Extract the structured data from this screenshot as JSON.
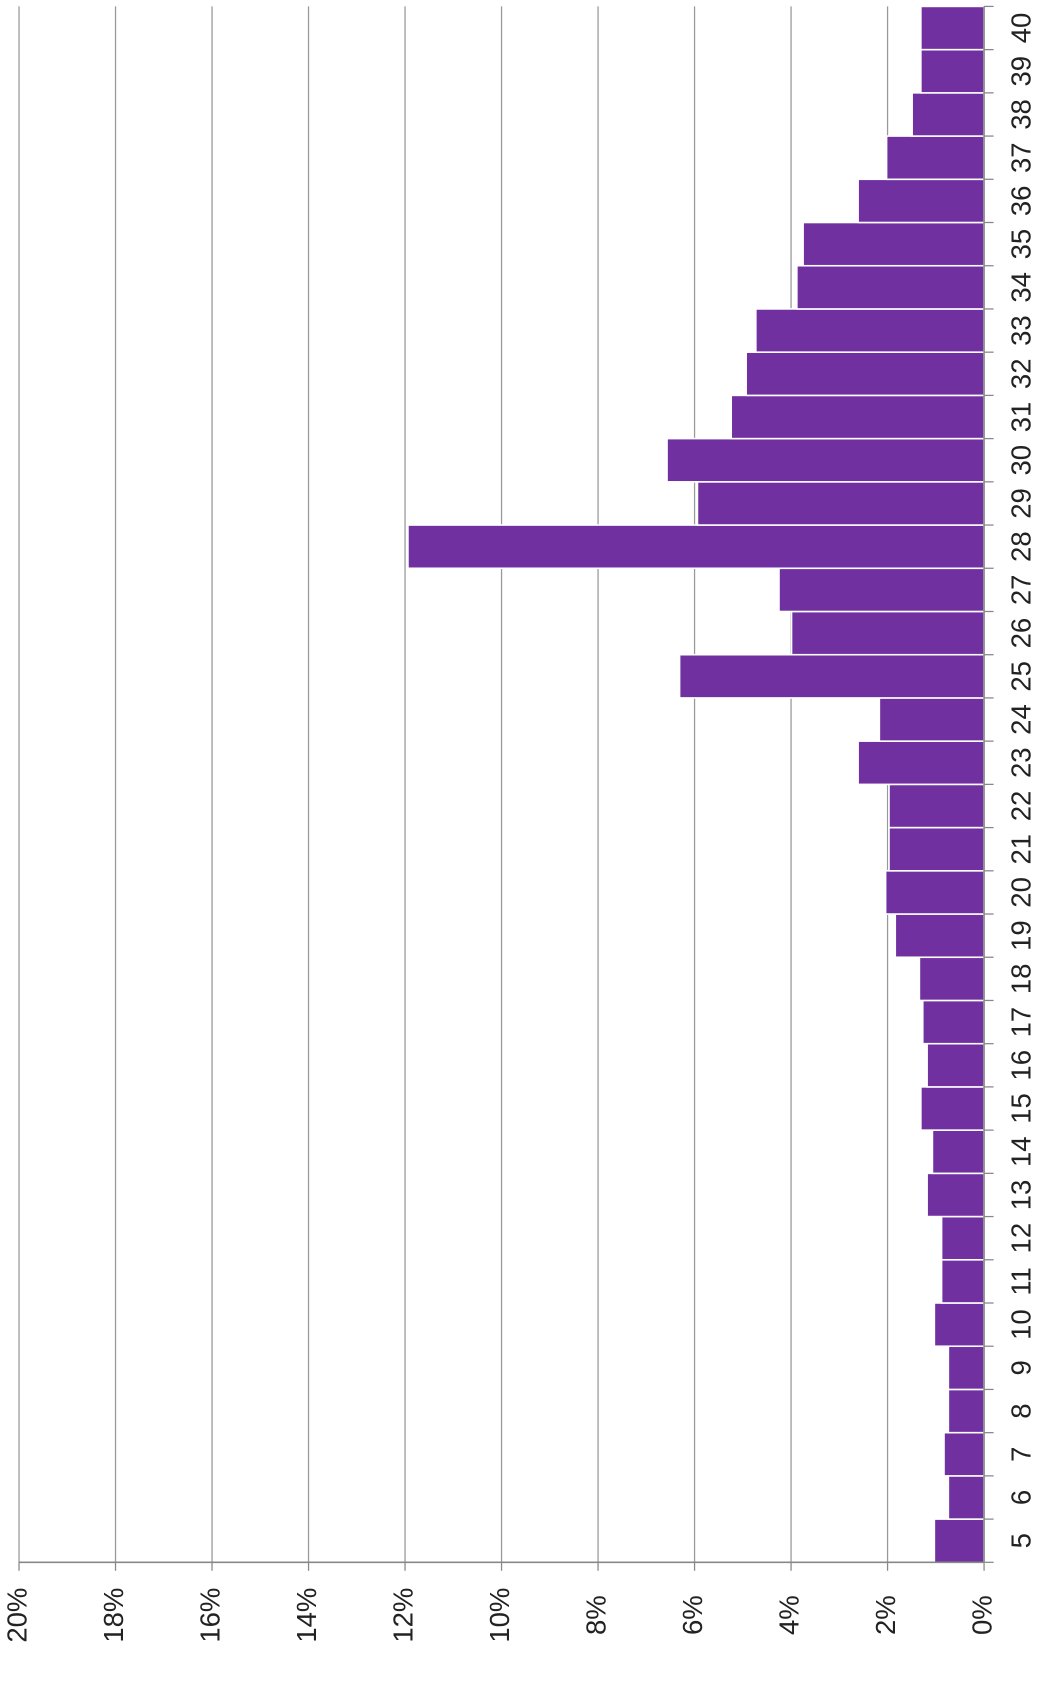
{
  "chart_data": {
    "type": "bar",
    "orientation": "rotated",
    "categories": [
      "5",
      "6",
      "7",
      "8",
      "9",
      "10",
      "11",
      "12",
      "13",
      "14",
      "15",
      "16",
      "17",
      "18",
      "19",
      "20",
      "21",
      "22",
      "23",
      "24",
      "25",
      "26",
      "27",
      "28",
      "29",
      "30",
      "31",
      "32",
      "33",
      "34",
      "35",
      "36",
      "37",
      "38",
      "39",
      "40"
    ],
    "values": [
      1.03,
      0.74,
      0.83,
      0.74,
      0.74,
      1.03,
      0.88,
      0.88,
      1.18,
      1.07,
      1.31,
      1.18,
      1.27,
      1.34,
      1.84,
      2.04,
      1.97,
      1.97,
      2.61,
      2.17,
      6.31,
      3.99,
      4.25,
      11.94,
      5.94,
      6.57,
      5.24,
      4.93,
      4.73,
      3.88,
      3.75,
      2.61,
      2.02,
      1.49,
      1.31,
      1.31
    ],
    "color": "#7030a0",
    "ylim": [
      0,
      20
    ],
    "yticks": [
      {
        "value": 0,
        "label": "0%"
      },
      {
        "value": 2,
        "label": "2%"
      },
      {
        "value": 4,
        "label": "4%"
      },
      {
        "value": 6,
        "label": "6%"
      },
      {
        "value": 8,
        "label": "8%"
      },
      {
        "value": 10,
        "label": "10%"
      },
      {
        "value": 12,
        "label": "12%"
      },
      {
        "value": 14,
        "label": "14%"
      },
      {
        "value": 16,
        "label": "16%"
      },
      {
        "value": 18,
        "label": "18%"
      },
      {
        "value": 20,
        "label": "20%"
      }
    ],
    "grid": true
  }
}
